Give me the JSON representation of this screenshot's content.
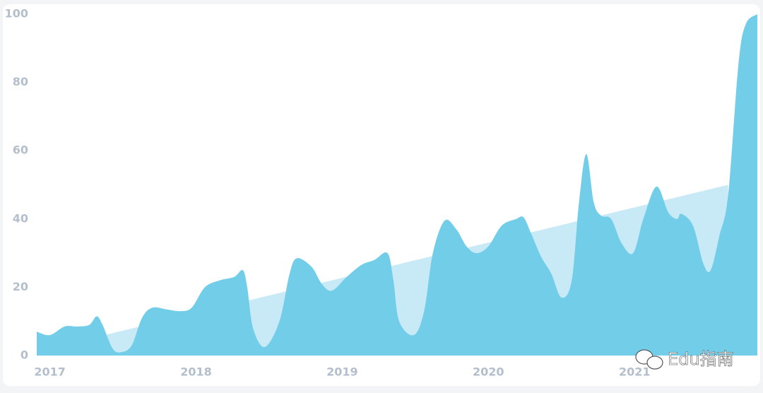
{
  "chart_data": {
    "type": "area",
    "watermark": "Edu指南",
    "xlim": [
      2016.91,
      2021.84
    ],
    "xticks": [
      2017,
      2018,
      2019,
      2020,
      2021
    ],
    "ylim": [
      0,
      100
    ],
    "yticks": [
      0,
      20,
      40,
      60,
      80,
      100
    ],
    "series": [
      {
        "color": "#c8eaf7",
        "x": [
          2016.91,
          2021.64
        ],
        "values": [
          1.2,
          50
        ]
      },
      {
        "color": "#72cde9",
        "x": [
          2016.91,
          2017.0,
          2017.1,
          2017.19,
          2017.27,
          2017.32,
          2017.36,
          2017.43,
          2017.49,
          2017.56,
          2017.63,
          2017.7,
          2017.8,
          2017.89,
          2017.97,
          2018.06,
          2018.16,
          2018.26,
          2018.32,
          2018.35,
          2018.39,
          2018.47,
          2018.57,
          2018.64,
          2018.69,
          2018.79,
          2018.86,
          2018.93,
          2019.03,
          2019.13,
          2019.22,
          2019.31,
          2019.35,
          2019.39,
          2019.49,
          2019.56,
          2019.62,
          2019.7,
          2019.78,
          2019.85,
          2019.92,
          2020.0,
          2020.09,
          2020.19,
          2020.24,
          2020.29,
          2020.36,
          2020.43,
          2020.5,
          2020.57,
          2020.62,
          2020.67,
          2020.72,
          2020.77,
          2020.84,
          2020.91,
          2020.99,
          2021.06,
          2021.15,
          2021.23,
          2021.29,
          2021.32,
          2021.4,
          2021.47,
          2021.52,
          2021.58,
          2021.64,
          2021.71,
          2021.76,
          2021.84
        ],
        "values": [
          7,
          6,
          8.5,
          8.5,
          9,
          11.5,
          9,
          2,
          1,
          3,
          11,
          14,
          13.5,
          13,
          14,
          20,
          22,
          23,
          25,
          20,
          8,
          2.5,
          10,
          24,
          28.5,
          26,
          21,
          19,
          23,
          26.5,
          28,
          30,
          22,
          10,
          6,
          13,
          30,
          39.5,
          37,
          32,
          30,
          32,
          38,
          40,
          40.5,
          36,
          29,
          24,
          17,
          22,
          45,
          59,
          45,
          41,
          40,
          33,
          30,
          40,
          49.5,
          42,
          40,
          41.5,
          38,
          27,
          25,
          35,
          47,
          85,
          97,
          100
        ]
      }
    ]
  }
}
